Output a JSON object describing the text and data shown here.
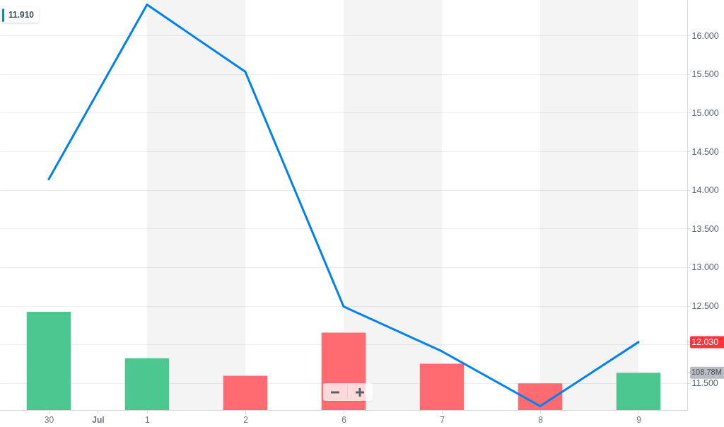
{
  "chart_data": {
    "type": "line",
    "categories": [
      "30",
      "1",
      "2",
      "6",
      "7",
      "8",
      "9"
    ],
    "ylim": [
      11.15,
      16.46
    ],
    "yticks": [
      {
        "value": 11.5,
        "label": "11.500"
      },
      {
        "value": 12,
        "label": null
      },
      {
        "value": 12.03,
        "label": "12.030"
      },
      {
        "value": 12.5,
        "label": "12.500"
      },
      {
        "value": 13,
        "label": "13.000"
      },
      {
        "value": 13.5,
        "label": "13.500"
      },
      {
        "value": 14,
        "label": "14.000"
      },
      {
        "value": 14.5,
        "label": "14.500"
      },
      {
        "value": 15,
        "label": "15.000"
      },
      {
        "value": 15.5,
        "label": "15.500"
      },
      {
        "value": 16,
        "label": "16.000"
      }
    ],
    "y2lim": [
      0,
      1197
    ],
    "y2ticks": [
      {
        "value": 108.78,
        "label": "108.78M"
      }
    ],
    "series": [
      {
        "type": "bar",
        "axis": "y2",
        "colors": [
          "#4cc790",
          "#4cc790",
          "#ff6b70",
          "#ff6b70",
          "#ff6b70",
          "#ff6b70",
          "#4cc790"
        ],
        "values": [
          287,
          151,
          100,
          226,
          135,
          78,
          108.78
        ]
      },
      {
        "color": "#0081f2",
        "values": [
          14.14,
          16.4,
          15.53,
          12.49,
          11.91,
          11.2,
          12.03
        ]
      }
    ],
    "grid": "y",
    "bands": [
      {
        "axis": "x",
        "from": "1",
        "to": "2",
        "color": "#f4f4f4"
      },
      {
        "axis": "x",
        "from": "6",
        "to": "7",
        "color": "#f4f4f4"
      },
      {
        "axis": "x",
        "from": "8",
        "to": "9",
        "color": "#f4f4f4"
      }
    ],
    "annotations": [
      "11.910",
      "Jul"
    ]
  }
}
